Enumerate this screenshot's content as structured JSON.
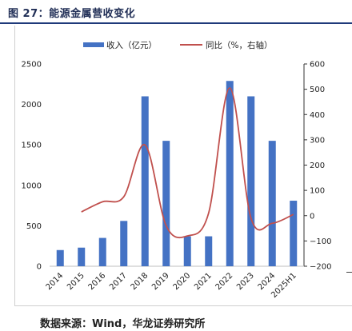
{
  "figure_title": "图 27：能源金属营收变化",
  "source": "数据来源：Wind，华龙证券研究所",
  "colors": {
    "bar": "#4472c4",
    "line": "#c0504d",
    "title_rule": "#1f3a7a"
  },
  "chart_data": {
    "type": "bar+line",
    "categories": [
      "2014",
      "2015",
      "2016",
      "2017",
      "2018",
      "2019",
      "2020",
      "2021",
      "2022",
      "2023",
      "2024",
      "2025H1"
    ],
    "series": [
      {
        "name": "收入（亿元）",
        "type": "bar",
        "axis": "left",
        "values": [
          200,
          230,
          350,
          560,
          2100,
          1550,
          370,
          370,
          2290,
          2100,
          1550,
          810
        ]
      },
      {
        "name": "同比（%，右轴）",
        "type": "line",
        "axis": "right",
        "smooth": true,
        "values": [
          null,
          15,
          55,
          75,
          280,
          -40,
          -80,
          10,
          505,
          -10,
          -30,
          5
        ]
      }
    ],
    "y_left": {
      "min": 0,
      "max": 2500,
      "ticks": [
        0,
        500,
        1000,
        1500,
        2000,
        2500
      ]
    },
    "y_right": {
      "min": -200,
      "max": 600,
      "ticks": [
        -200,
        -100,
        0,
        100,
        200,
        300,
        400,
        500,
        600
      ]
    },
    "legend_position": "top"
  }
}
